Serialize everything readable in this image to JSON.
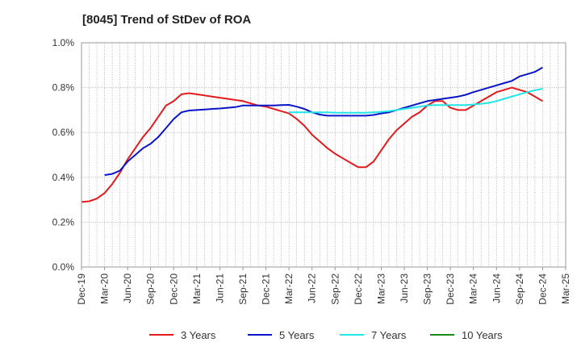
{
  "chart_data": {
    "type": "line",
    "title": "[8045]  Trend of StDev of ROA",
    "xlabel": "",
    "ylabel": "",
    "ylim": [
      0,
      0.01
    ],
    "y_ticks": [
      0,
      0.002,
      0.004,
      0.006,
      0.008,
      0.01
    ],
    "y_tick_labels": [
      "0.0%",
      "0.2%",
      "0.4%",
      "0.6%",
      "0.8%",
      "1.0%"
    ],
    "x_start": "Dec-19",
    "x_tick_labels": [
      "Dec-19",
      "Mar-20",
      "Jun-20",
      "Sep-20",
      "Dec-20",
      "Mar-21",
      "Jun-21",
      "Sep-21",
      "Dec-21",
      "Mar-22",
      "Jun-22",
      "Sep-22",
      "Dec-22",
      "Mar-23",
      "Jun-23",
      "Sep-23",
      "Dec-23",
      "Mar-24",
      "Jun-24",
      "Sep-24",
      "Dec-24",
      "Mar-25"
    ],
    "grid": true,
    "legend_position": "bottom",
    "series": [
      {
        "name": "3 Years",
        "color": "#e41a1c",
        "points": [
          [
            "Dec-19",
            0.0029
          ],
          [
            "Jan-20",
            0.00293
          ],
          [
            "Feb-20",
            0.00305
          ],
          [
            "Mar-20",
            0.0033
          ],
          [
            "Apr-20",
            0.0037
          ],
          [
            "May-20",
            0.0042
          ],
          [
            "Jun-20",
            0.0048
          ],
          [
            "Jul-20",
            0.0053
          ],
          [
            "Aug-20",
            0.0058
          ],
          [
            "Sep-20",
            0.0062
          ],
          [
            "Oct-20",
            0.0067
          ],
          [
            "Nov-20",
            0.0072
          ],
          [
            "Dec-20",
            0.0074
          ],
          [
            "Jan-21",
            0.0077
          ],
          [
            "Feb-21",
            0.00775
          ],
          [
            "Mar-21",
            0.0077
          ],
          [
            "Apr-21",
            0.00765
          ],
          [
            "May-21",
            0.0076
          ],
          [
            "Jun-21",
            0.00755
          ],
          [
            "Jul-21",
            0.0075
          ],
          [
            "Aug-21",
            0.00745
          ],
          [
            "Sep-21",
            0.0074
          ],
          [
            "Oct-21",
            0.0073
          ],
          [
            "Nov-21",
            0.0072
          ],
          [
            "Dec-21",
            0.00715
          ],
          [
            "Jan-22",
            0.00705
          ],
          [
            "Feb-22",
            0.00695
          ],
          [
            "Mar-22",
            0.00685
          ],
          [
            "Apr-22",
            0.0066
          ],
          [
            "May-22",
            0.0063
          ],
          [
            "Jun-22",
            0.0059
          ],
          [
            "Jul-22",
            0.0056
          ],
          [
            "Aug-22",
            0.0053
          ],
          [
            "Sep-22",
            0.00505
          ],
          [
            "Oct-22",
            0.00485
          ],
          [
            "Nov-22",
            0.00465
          ],
          [
            "Dec-22",
            0.00445
          ],
          [
            "Jan-23",
            0.00445
          ],
          [
            "Feb-23",
            0.0047
          ],
          [
            "Mar-23",
            0.0052
          ],
          [
            "Apr-23",
            0.0057
          ],
          [
            "May-23",
            0.0061
          ],
          [
            "Jun-23",
            0.0064
          ],
          [
            "Jul-23",
            0.0067
          ],
          [
            "Aug-23",
            0.0069
          ],
          [
            "Sep-23",
            0.0072
          ],
          [
            "Oct-23",
            0.0074
          ],
          [
            "Nov-23",
            0.0074
          ],
          [
            "Dec-23",
            0.0071
          ],
          [
            "Jan-24",
            0.007
          ],
          [
            "Feb-24",
            0.007
          ],
          [
            "Mar-24",
            0.0072
          ],
          [
            "Apr-24",
            0.0074
          ],
          [
            "May-24",
            0.0076
          ],
          [
            "Jun-24",
            0.0078
          ],
          [
            "Jul-24",
            0.0079
          ],
          [
            "Aug-24",
            0.008
          ],
          [
            "Sep-24",
            0.0079
          ],
          [
            "Oct-24",
            0.0078
          ],
          [
            "Nov-24",
            0.0076
          ],
          [
            "Dec-24",
            0.0074
          ]
        ]
      },
      {
        "name": "5 Years",
        "color": "#0a14c8",
        "points": [
          [
            "Mar-20",
            0.0041
          ],
          [
            "Apr-20",
            0.00415
          ],
          [
            "May-20",
            0.0043
          ],
          [
            "Jun-20",
            0.0047
          ],
          [
            "Jul-20",
            0.005
          ],
          [
            "Aug-20",
            0.0053
          ],
          [
            "Sep-20",
            0.0055
          ],
          [
            "Oct-20",
            0.0058
          ],
          [
            "Nov-20",
            0.0062
          ],
          [
            "Dec-20",
            0.0066
          ],
          [
            "Jan-21",
            0.0069
          ],
          [
            "Feb-21",
            0.00698
          ],
          [
            "Mar-21",
            0.007
          ],
          [
            "Apr-21",
            0.00702
          ],
          [
            "May-21",
            0.00705
          ],
          [
            "Jun-21",
            0.00707
          ],
          [
            "Jul-21",
            0.0071
          ],
          [
            "Aug-21",
            0.00713
          ],
          [
            "Sep-21",
            0.0072
          ],
          [
            "Oct-21",
            0.0072
          ],
          [
            "Nov-21",
            0.0072
          ],
          [
            "Dec-21",
            0.0072
          ],
          [
            "Jan-22",
            0.0072
          ],
          [
            "Feb-22",
            0.00722
          ],
          [
            "Mar-22",
            0.00723
          ],
          [
            "Apr-22",
            0.00715
          ],
          [
            "May-22",
            0.00705
          ],
          [
            "Jun-22",
            0.0069
          ],
          [
            "Jul-22",
            0.0068
          ],
          [
            "Aug-22",
            0.00675
          ],
          [
            "Sep-22",
            0.00675
          ],
          [
            "Oct-22",
            0.00675
          ],
          [
            "Nov-22",
            0.00675
          ],
          [
            "Dec-22",
            0.00675
          ],
          [
            "Jan-23",
            0.00675
          ],
          [
            "Feb-23",
            0.00678
          ],
          [
            "Mar-23",
            0.00685
          ],
          [
            "Apr-23",
            0.0069
          ],
          [
            "May-23",
            0.007
          ],
          [
            "Jun-23",
            0.0071
          ],
          [
            "Jul-23",
            0.0072
          ],
          [
            "Aug-23",
            0.0073
          ],
          [
            "Sep-23",
            0.0074
          ],
          [
            "Oct-23",
            0.00745
          ],
          [
            "Nov-23",
            0.0075
          ],
          [
            "Dec-23",
            0.00755
          ],
          [
            "Jan-24",
            0.0076
          ],
          [
            "Feb-24",
            0.00768
          ],
          [
            "Mar-24",
            0.0078
          ],
          [
            "Apr-24",
            0.0079
          ],
          [
            "May-24",
            0.008
          ],
          [
            "Jun-24",
            0.0081
          ],
          [
            "Jul-24",
            0.0082
          ],
          [
            "Aug-24",
            0.0083
          ],
          [
            "Sep-24",
            0.0085
          ],
          [
            "Oct-24",
            0.0086
          ],
          [
            "Nov-24",
            0.0087
          ],
          [
            "Dec-24",
            0.0089
          ]
        ]
      },
      {
        "name": "7 Years",
        "color": "#22e6e6",
        "points": [
          [
            "Mar-22",
            0.0069
          ],
          [
            "Apr-22",
            0.0069
          ],
          [
            "May-22",
            0.0069
          ],
          [
            "Jun-22",
            0.0069
          ],
          [
            "Jul-22",
            0.0069
          ],
          [
            "Aug-22",
            0.0069
          ],
          [
            "Sep-22",
            0.00688
          ],
          [
            "Oct-22",
            0.00688
          ],
          [
            "Nov-22",
            0.00688
          ],
          [
            "Dec-22",
            0.00688
          ],
          [
            "Jan-23",
            0.00688
          ],
          [
            "Feb-23",
            0.0069
          ],
          [
            "Mar-23",
            0.00692
          ],
          [
            "Apr-23",
            0.00695
          ],
          [
            "May-23",
            0.007
          ],
          [
            "Jun-23",
            0.00705
          ],
          [
            "Jul-23",
            0.0071
          ],
          [
            "Aug-23",
            0.00715
          ],
          [
            "Sep-23",
            0.0072
          ],
          [
            "Oct-23",
            0.00722
          ],
          [
            "Nov-23",
            0.00722
          ],
          [
            "Dec-23",
            0.00722
          ],
          [
            "Jan-24",
            0.00722
          ],
          [
            "Feb-24",
            0.00722
          ],
          [
            "Mar-24",
            0.00725
          ],
          [
            "Apr-24",
            0.00728
          ],
          [
            "May-24",
            0.00732
          ],
          [
            "Jun-24",
            0.0074
          ],
          [
            "Jul-24",
            0.0075
          ],
          [
            "Aug-24",
            0.0076
          ],
          [
            "Sep-24",
            0.0077
          ],
          [
            "Oct-24",
            0.0078
          ],
          [
            "Nov-24",
            0.00788
          ],
          [
            "Dec-24",
            0.00795
          ]
        ]
      },
      {
        "name": "10 Years",
        "color": "#1a8a1a",
        "points": []
      }
    ]
  }
}
